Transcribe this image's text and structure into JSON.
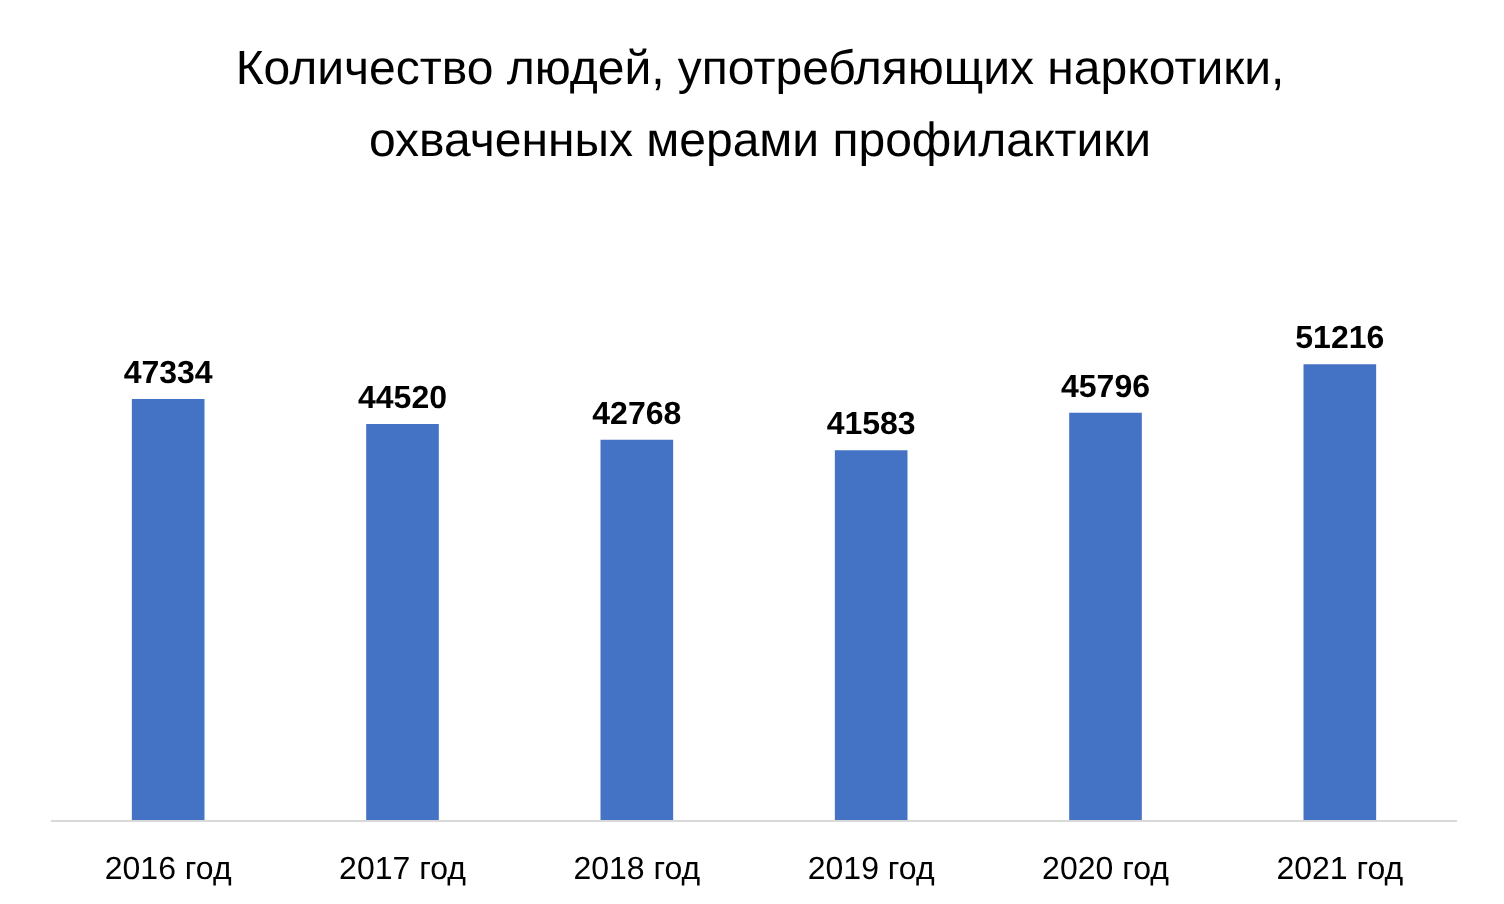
{
  "chart_data": {
    "type": "bar",
    "title": "Количество людей, употребляющих наркотики, охваченных мерами профилактики",
    "categories": [
      "2016 год",
      "2017 год",
      "2018 год",
      "2019 год",
      "2020 год",
      "2021 год"
    ],
    "values": [
      47334,
      44520,
      42768,
      41583,
      45796,
      51216
    ],
    "color": "#4472c4",
    "data_labels": true
  }
}
